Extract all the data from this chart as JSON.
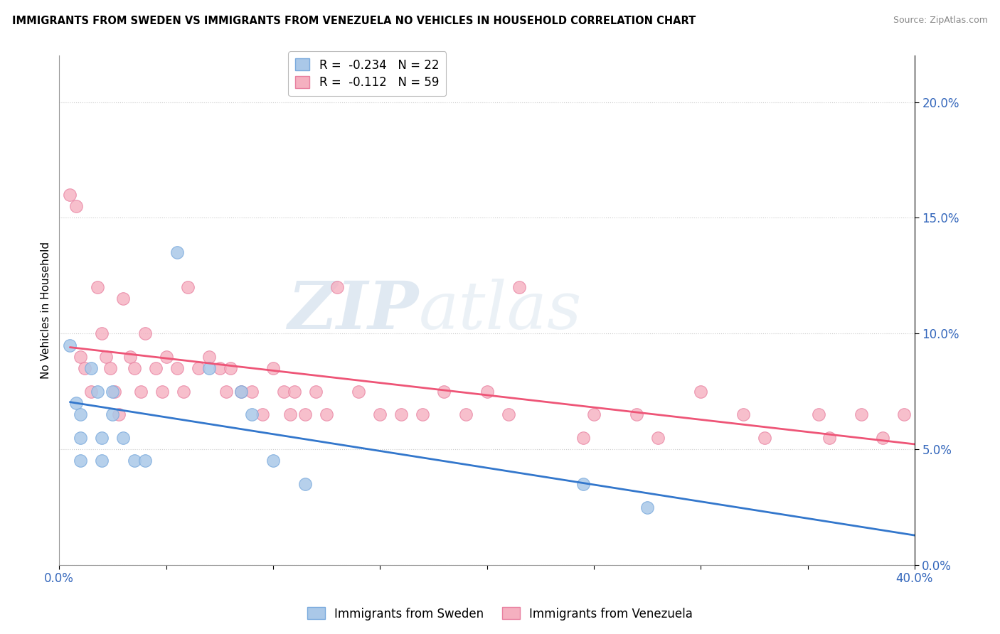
{
  "title": "IMMIGRANTS FROM SWEDEN VS IMMIGRANTS FROM VENEZUELA NO VEHICLES IN HOUSEHOLD CORRELATION CHART",
  "source": "Source: ZipAtlas.com",
  "ylabel": "No Vehicles in Household",
  "xmin": 0.0,
  "xmax": 0.4,
  "ymin": 0.0,
  "ymax": 0.22,
  "yticks": [
    0.0,
    0.05,
    0.1,
    0.15,
    0.2
  ],
  "xticks": [
    0.0,
    0.05,
    0.1,
    0.15,
    0.2,
    0.25,
    0.3,
    0.35,
    0.4
  ],
  "sweden_color": "#aac8e8",
  "venezuela_color": "#f5b0c0",
  "sweden_edge": "#7aaadd",
  "venezuela_edge": "#e880a0",
  "trend_sweden_color": "#3377cc",
  "trend_venezuela_color": "#ee5577",
  "legend_R_sweden": "R =  -0.234",
  "legend_N_sweden": "N = 22",
  "legend_R_venezuela": "R =  -0.112",
  "legend_N_venezuela": "N = 59",
  "watermark_zip": "ZIP",
  "watermark_atlas": "atlas",
  "sweden_x": [
    0.005,
    0.008,
    0.01,
    0.01,
    0.01,
    0.015,
    0.018,
    0.02,
    0.02,
    0.025,
    0.025,
    0.03,
    0.035,
    0.04,
    0.055,
    0.07,
    0.085,
    0.09,
    0.1,
    0.115,
    0.245,
    0.275
  ],
  "sweden_y": [
    0.095,
    0.07,
    0.065,
    0.055,
    0.045,
    0.085,
    0.075,
    0.055,
    0.045,
    0.075,
    0.065,
    0.055,
    0.045,
    0.045,
    0.135,
    0.085,
    0.075,
    0.065,
    0.045,
    0.035,
    0.035,
    0.025
  ],
  "venezuela_x": [
    0.005,
    0.008,
    0.01,
    0.012,
    0.015,
    0.018,
    0.02,
    0.022,
    0.024,
    0.026,
    0.028,
    0.03,
    0.033,
    0.035,
    0.038,
    0.04,
    0.045,
    0.048,
    0.05,
    0.055,
    0.058,
    0.06,
    0.065,
    0.07,
    0.075,
    0.078,
    0.08,
    0.085,
    0.09,
    0.095,
    0.1,
    0.105,
    0.108,
    0.11,
    0.115,
    0.12,
    0.125,
    0.13,
    0.14,
    0.15,
    0.16,
    0.17,
    0.18,
    0.19,
    0.2,
    0.21,
    0.215,
    0.245,
    0.25,
    0.27,
    0.28,
    0.3,
    0.32,
    0.33,
    0.355,
    0.36,
    0.375,
    0.385,
    0.395
  ],
  "venezuela_y": [
    0.16,
    0.155,
    0.09,
    0.085,
    0.075,
    0.12,
    0.1,
    0.09,
    0.085,
    0.075,
    0.065,
    0.115,
    0.09,
    0.085,
    0.075,
    0.1,
    0.085,
    0.075,
    0.09,
    0.085,
    0.075,
    0.12,
    0.085,
    0.09,
    0.085,
    0.075,
    0.085,
    0.075,
    0.075,
    0.065,
    0.085,
    0.075,
    0.065,
    0.075,
    0.065,
    0.075,
    0.065,
    0.12,
    0.075,
    0.065,
    0.065,
    0.065,
    0.075,
    0.065,
    0.075,
    0.065,
    0.12,
    0.055,
    0.065,
    0.065,
    0.055,
    0.075,
    0.065,
    0.055,
    0.065,
    0.055,
    0.065,
    0.055,
    0.065
  ]
}
